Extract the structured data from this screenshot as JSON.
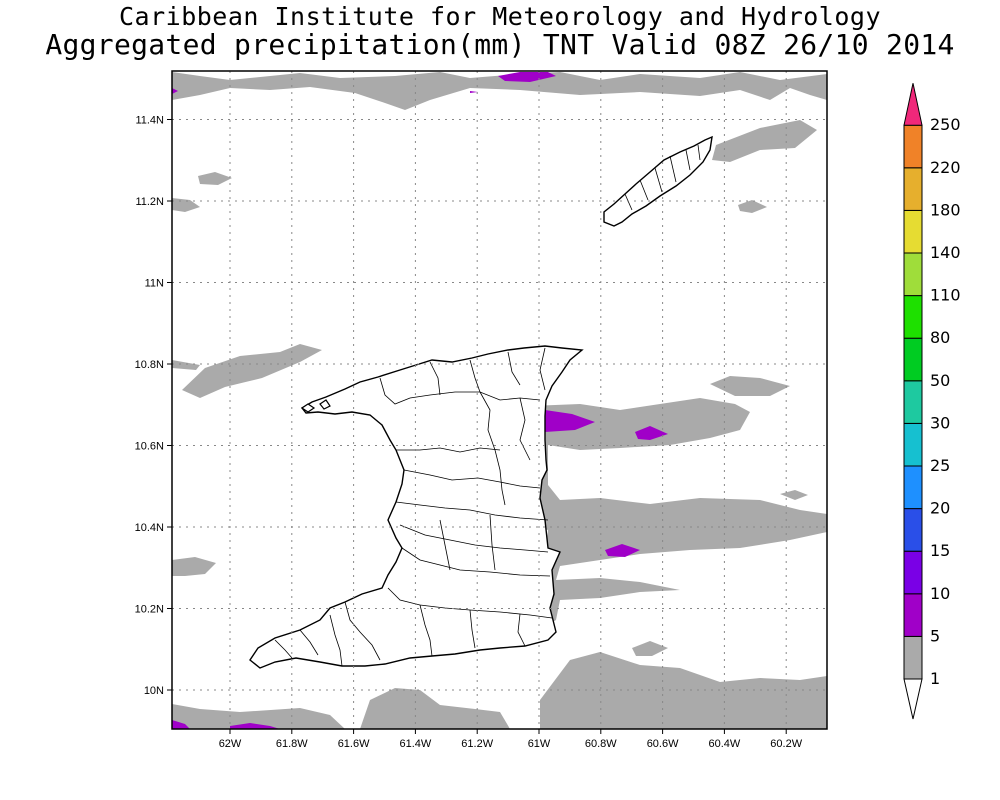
{
  "titles": {
    "line1": "Caribbean Institute for Meteorology and Hydrology",
    "line2": "Aggregated precipitation(mm) TNT Valid 08Z 26/10 2014"
  },
  "map": {
    "lat_range": [
      9.9,
      11.52
    ],
    "lon_range": [
      -62.18,
      -60.17
    ],
    "grid": true,
    "lat_ticks": [
      {
        "value": 10.0,
        "label": "10N"
      },
      {
        "value": 10.2,
        "label": "10.2N"
      },
      {
        "value": 10.4,
        "label": "10.4N"
      },
      {
        "value": 10.6,
        "label": "10.6N"
      },
      {
        "value": 10.8,
        "label": "10.8N"
      },
      {
        "value": 11.0,
        "label": "11N"
      },
      {
        "value": 11.2,
        "label": "11.2N"
      },
      {
        "value": 11.4,
        "label": "11.4N"
      }
    ],
    "lon_ticks": [
      {
        "value": -62.0,
        "label": "62W"
      },
      {
        "value": -61.8,
        "label": "61.8W"
      },
      {
        "value": -61.6,
        "label": "61.6W"
      },
      {
        "value": -61.4,
        "label": "61.4W"
      },
      {
        "value": -61.2,
        "label": "61.2W"
      },
      {
        "value": -61.0,
        "label": "61W"
      },
      {
        "value": -60.8,
        "label": "60.8W"
      },
      {
        "value": -60.6,
        "label": "60.6W"
      },
      {
        "value": -60.4,
        "label": "60.4W"
      },
      {
        "value": -60.2,
        "label": "60.2W"
      }
    ]
  },
  "legend": {
    "levels": [
      "1",
      "5",
      "10",
      "15",
      "20",
      "25",
      "30",
      "50",
      "80",
      "110",
      "140",
      "180",
      "220",
      "250"
    ],
    "colors": [
      "#aaaaaa",
      "#a000c8",
      "#7a00e6",
      "#2a4fe8",
      "#1e90ff",
      "#16c0d0",
      "#1ec9a0",
      "#00cc22",
      "#1ee000",
      "#9fdd3a",
      "#e6dc32",
      "#e6af2d",
      "#f08228",
      "#fa3c3c",
      "#f0287a"
    ]
  }
}
